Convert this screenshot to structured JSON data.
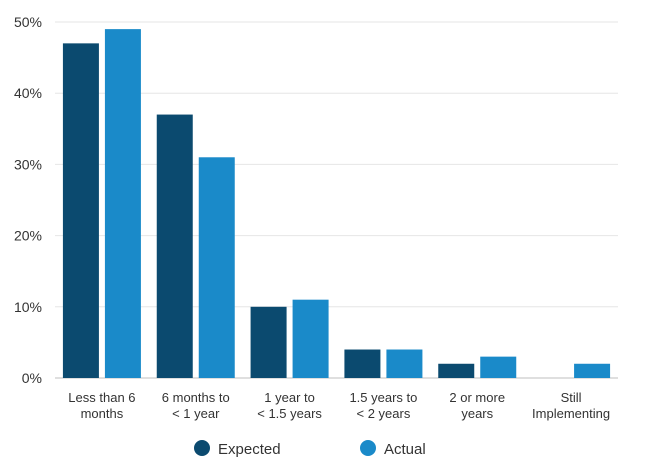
{
  "chart_data": {
    "type": "bar",
    "title": "",
    "xlabel": "",
    "ylabel": "",
    "ylim": [
      0,
      50
    ],
    "yticks": [
      "0%",
      "10%",
      "20%",
      "30%",
      "40%",
      "50%"
    ],
    "grid": true,
    "legend_position": "bottom",
    "categories": [
      [
        "Less than 6",
        "months"
      ],
      [
        "6 months to",
        "< 1 year"
      ],
      [
        "1 year to",
        "< 1.5 years"
      ],
      [
        "1.5 years to",
        "< 2 years"
      ],
      [
        "2 or more",
        "years"
      ],
      [
        "Still",
        "Implementing"
      ]
    ],
    "series": [
      {
        "name": "Expected",
        "color": "#0b4a6f",
        "values": [
          47,
          37,
          10,
          4,
          2,
          0
        ]
      },
      {
        "name": "Actual",
        "color": "#1a8ac9",
        "values": [
          49,
          31,
          11,
          4,
          3,
          2
        ]
      }
    ]
  }
}
